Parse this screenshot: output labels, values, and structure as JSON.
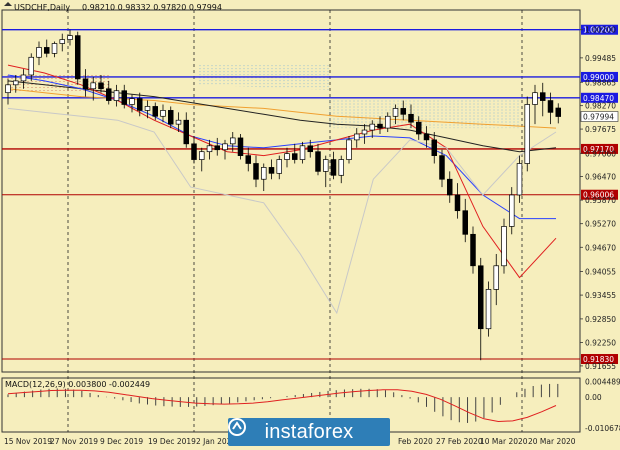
{
  "header": {
    "symbol": "USDCHF,Daily",
    "ohlc": "0.98210 0.98332 0.97820 0.97994"
  },
  "colors": {
    "background": "#f6eebd",
    "blue_level": "#1b1be0",
    "red_level": "#b00000",
    "candle_up": "#ffffff",
    "candle_down": "#000000"
  },
  "logo": {
    "text": "instaforex",
    "icon": "instaforex-logo-icon"
  },
  "chart_data": [
    {
      "type": "candlestick",
      "title": "USDCHF,Daily",
      "ylim": [
        0.915,
        1.006
      ],
      "price_ticks": [
        "1.00200",
        "0.99485",
        "0.98865",
        "0.98270",
        "0.97675",
        "0.97060",
        "0.96470",
        "0.95870",
        "0.95270",
        "0.94670",
        "0.94055",
        "0.93455",
        "0.92850",
        "0.92250",
        "0.91655"
      ],
      "date_ticks": [
        "15 Nov 2019",
        "27 Nov 2019",
        "9 Dec 2019",
        "19 Dec 2019",
        "2 Jan 2020",
        "Feb 2020",
        "27 Feb 2020",
        "10 Mar 2020",
        "20 Mar 2020"
      ],
      "levels": [
        {
          "price": "1.00200",
          "value": 1.002,
          "color": "blue"
        },
        {
          "price": "0.99000",
          "value": 0.99,
          "color": "blue"
        },
        {
          "price": "0.98470",
          "value": 0.9847,
          "color": "blue"
        },
        {
          "price": "0.97170",
          "value": 0.9717,
          "color": "red"
        },
        {
          "price": "0.96006",
          "value": 0.96006,
          "color": "red"
        },
        {
          "price": "0.91830",
          "value": 0.9183,
          "color": "red"
        }
      ],
      "current_price": "0.97994",
      "candles": [
        [
          0.986,
          0.9895,
          0.983,
          0.988
        ],
        [
          0.988,
          0.9905,
          0.986,
          0.989
        ],
        [
          0.989,
          0.992,
          0.987,
          0.9905
        ],
        [
          0.9905,
          0.996,
          0.989,
          0.995
        ],
        [
          0.995,
          0.999,
          0.993,
          0.9975
        ],
        [
          0.9975,
          0.9995,
          0.995,
          0.996
        ],
        [
          0.996,
          0.999,
          0.995,
          0.9985
        ],
        [
          0.9985,
          1.001,
          0.9965,
          0.9995
        ],
        [
          0.9995,
          1.002,
          0.998,
          1.0005
        ],
        [
          1.0005,
          1.0015,
          0.988,
          0.9895
        ],
        [
          0.9895,
          0.992,
          0.985,
          0.987
        ],
        [
          0.987,
          0.99,
          0.984,
          0.9885
        ],
        [
          0.9885,
          0.9905,
          0.986,
          0.987
        ],
        [
          0.987,
          0.989,
          0.983,
          0.984
        ],
        [
          0.984,
          0.988,
          0.9825,
          0.9865
        ],
        [
          0.9865,
          0.988,
          0.982,
          0.983
        ],
        [
          0.983,
          0.9855,
          0.981,
          0.9845
        ],
        [
          0.9845,
          0.986,
          0.98,
          0.9815
        ],
        [
          0.9815,
          0.984,
          0.9795,
          0.9825
        ],
        [
          0.9825,
          0.9835,
          0.979,
          0.98
        ],
        [
          0.98,
          0.983,
          0.9785,
          0.9815
        ],
        [
          0.9815,
          0.9825,
          0.977,
          0.978
        ],
        [
          0.978,
          0.981,
          0.976,
          0.979
        ],
        [
          0.979,
          0.981,
          0.972,
          0.973
        ],
        [
          0.973,
          0.975,
          0.968,
          0.969
        ],
        [
          0.969,
          0.972,
          0.966,
          0.971
        ],
        [
          0.971,
          0.974,
          0.969,
          0.9725
        ],
        [
          0.9725,
          0.9745,
          0.97,
          0.9715
        ],
        [
          0.9715,
          0.974,
          0.969,
          0.973
        ],
        [
          0.973,
          0.976,
          0.971,
          0.9745
        ],
        [
          0.9745,
          0.9755,
          0.969,
          0.97
        ],
        [
          0.97,
          0.972,
          0.966,
          0.968
        ],
        [
          0.968,
          0.97,
          0.962,
          0.964
        ],
        [
          0.964,
          0.968,
          0.961,
          0.967
        ],
        [
          0.967,
          0.969,
          0.964,
          0.9655
        ],
        [
          0.9655,
          0.97,
          0.964,
          0.969
        ],
        [
          0.969,
          0.972,
          0.967,
          0.9705
        ],
        [
          0.9705,
          0.973,
          0.968,
          0.969
        ],
        [
          0.969,
          0.9735,
          0.968,
          0.9725
        ],
        [
          0.9725,
          0.974,
          0.9695,
          0.971
        ],
        [
          0.971,
          0.973,
          0.965,
          0.966
        ],
        [
          0.966,
          0.97,
          0.962,
          0.969
        ],
        [
          0.969,
          0.971,
          0.964,
          0.965
        ],
        [
          0.965,
          0.97,
          0.963,
          0.969
        ],
        [
          0.969,
          0.975,
          0.968,
          0.974
        ],
        [
          0.974,
          0.977,
          0.972,
          0.9755
        ],
        [
          0.9755,
          0.978,
          0.973,
          0.9765
        ],
        [
          0.9765,
          0.979,
          0.9745,
          0.978
        ],
        [
          0.978,
          0.98,
          0.9755,
          0.977
        ],
        [
          0.977,
          0.981,
          0.976,
          0.98
        ],
        [
          0.98,
          0.983,
          0.978,
          0.982
        ],
        [
          0.982,
          0.984,
          0.979,
          0.9805
        ],
        [
          0.9805,
          0.983,
          0.977,
          0.9785
        ],
        [
          0.9785,
          0.98,
          0.974,
          0.9755
        ],
        [
          0.9755,
          0.9775,
          0.972,
          0.974
        ],
        [
          0.974,
          0.976,
          0.968,
          0.97
        ],
        [
          0.97,
          0.9715,
          0.962,
          0.964
        ],
        [
          0.964,
          0.966,
          0.958,
          0.96
        ],
        [
          0.96,
          0.963,
          0.954,
          0.956
        ],
        [
          0.956,
          0.959,
          0.948,
          0.95
        ],
        [
          0.95,
          0.952,
          0.94,
          0.942
        ],
        [
          0.942,
          0.944,
          0.918,
          0.926
        ],
        [
          0.926,
          0.938,
          0.924,
          0.936
        ],
        [
          0.936,
          0.945,
          0.932,
          0.942
        ],
        [
          0.942,
          0.954,
          0.94,
          0.952
        ],
        [
          0.952,
          0.962,
          0.95,
          0.96
        ],
        [
          0.96,
          0.97,
          0.958,
          0.968
        ],
        [
          0.968,
          0.985,
          0.966,
          0.983
        ],
        [
          0.983,
          0.988,
          0.978,
          0.986
        ],
        [
          0.986,
          0.9885,
          0.98,
          0.984
        ],
        [
          0.984,
          0.986,
          0.978,
          0.981
        ],
        [
          0.9821,
          0.9833,
          0.9782,
          0.97994
        ]
      ],
      "overlays": [
        {
          "name": "orange-ma",
          "color": "#f0a030",
          "values": [
            0.987,
            0.986,
            0.985,
            0.9845,
            0.984,
            0.983,
            0.9825,
            0.982,
            0.981,
            0.98,
            0.9795,
            0.979,
            0.9785,
            0.978,
            0.9775,
            0.977
          ]
        },
        {
          "name": "black-ma",
          "color": "#222222",
          "values": [
            0.989,
            0.988,
            0.987,
            0.986,
            0.985,
            0.9835,
            0.982,
            0.9805,
            0.979,
            0.978,
            0.9775,
            0.9765,
            0.9745,
            0.9725,
            0.971,
            0.972
          ]
        },
        {
          "name": "blue-ma",
          "color": "#2a40ff",
          "values": [
            0.9905,
            0.989,
            0.987,
            0.984,
            0.98,
            0.975,
            0.9725,
            0.972,
            0.973,
            0.974,
            0.975,
            0.9745,
            0.97,
            0.96,
            0.954,
            0.954
          ]
        },
        {
          "name": "red-ma",
          "color": "#e02020",
          "values": [
            0.993,
            0.991,
            0.988,
            0.984,
            0.979,
            0.975,
            0.971,
            0.97,
            0.9715,
            0.974,
            0.9765,
            0.978,
            0.972,
            0.952,
            0.939,
            0.949
          ]
        },
        {
          "name": "grey-line",
          "color": "#c8c8c8",
          "values": [
            0.982,
            0.981,
            0.98,
            0.979,
            0.976,
            0.962,
            0.96,
            0.958,
            0.945,
            0.93,
            0.964,
            0.974,
            0.972,
            0.96,
            0.97,
            0.976
          ]
        }
      ]
    },
    {
      "type": "histogram",
      "title": "MACD(12,26,9) 0.003800 -0.002449",
      "ylim": [
        -0.01,
        0.0055
      ],
      "ticks": [
        "0.004489",
        "0.00",
        "-0.010678"
      ],
      "values": [
        0.0008,
        0.0012,
        0.0016,
        0.0019,
        0.0022,
        0.0024,
        0.0025,
        0.0024,
        0.0022,
        0.0018,
        0.0012,
        0.0006,
        0.0001,
        -0.0004,
        -0.0009,
        -0.0014,
        -0.0018,
        -0.0021,
        -0.0024,
        -0.0026,
        -0.0027,
        -0.0028,
        -0.0028,
        -0.0027,
        -0.0025,
        -0.0023,
        -0.002,
        -0.0018,
        -0.0015,
        -0.0012,
        -0.0009,
        -0.0006,
        -0.0003,
        0.0,
        0.0003,
        0.0006,
        0.0009,
        0.0012,
        0.0015,
        0.0018,
        0.002,
        0.0022,
        0.0023,
        0.0024,
        0.0024,
        0.0023,
        0.002,
        0.0014,
        0.0006,
        -0.0004,
        -0.0015,
        -0.0028,
        -0.0042,
        -0.0055,
        -0.0066,
        -0.0072,
        -0.0074,
        -0.007,
        -0.006,
        -0.0044,
        -0.0022,
        0.0,
        0.0014,
        0.0024,
        0.0032,
        0.0036,
        0.0038,
        0.0038
      ],
      "signal": [
        0.001,
        0.0013,
        0.0016,
        0.0019,
        0.002,
        0.002,
        0.0018,
        0.0014,
        0.0008,
        0.0002,
        -0.0004,
        -0.0009,
        -0.0013,
        -0.0017,
        -0.0019,
        -0.002,
        -0.0019,
        -0.0017,
        -0.0013,
        -0.0008,
        -0.0003,
        0.0002,
        0.0007,
        0.0012,
        0.0016,
        0.0019,
        0.0021,
        0.0021,
        0.0017,
        0.0008,
        -0.0006,
        -0.0025,
        -0.0045,
        -0.0062,
        -0.007,
        -0.0068,
        -0.0058,
        -0.0042,
        -0.0024
      ]
    }
  ]
}
